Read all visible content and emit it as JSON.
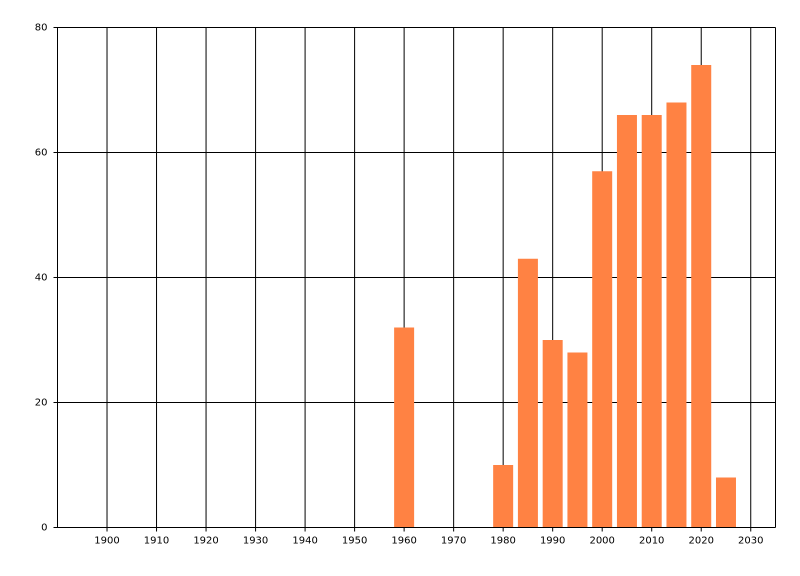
{
  "chart_data": {
    "type": "bar",
    "x": [
      1960,
      1980,
      1985,
      1990,
      1995,
      2000,
      2005,
      2010,
      2015,
      2020,
      2025
    ],
    "values": [
      32,
      10,
      43,
      30,
      28,
      57,
      66,
      66,
      68,
      74,
      8
    ],
    "color": "#ff8243",
    "xlim": [
      1890,
      2035
    ],
    "xticks": [
      1900,
      1910,
      1920,
      1930,
      1940,
      1950,
      1960,
      1970,
      1980,
      1990,
      2000,
      2010,
      2020,
      2030
    ],
    "ylim": [
      0,
      80
    ],
    "yticks": [
      0,
      20,
      40,
      60,
      80
    ],
    "grid": true
  }
}
